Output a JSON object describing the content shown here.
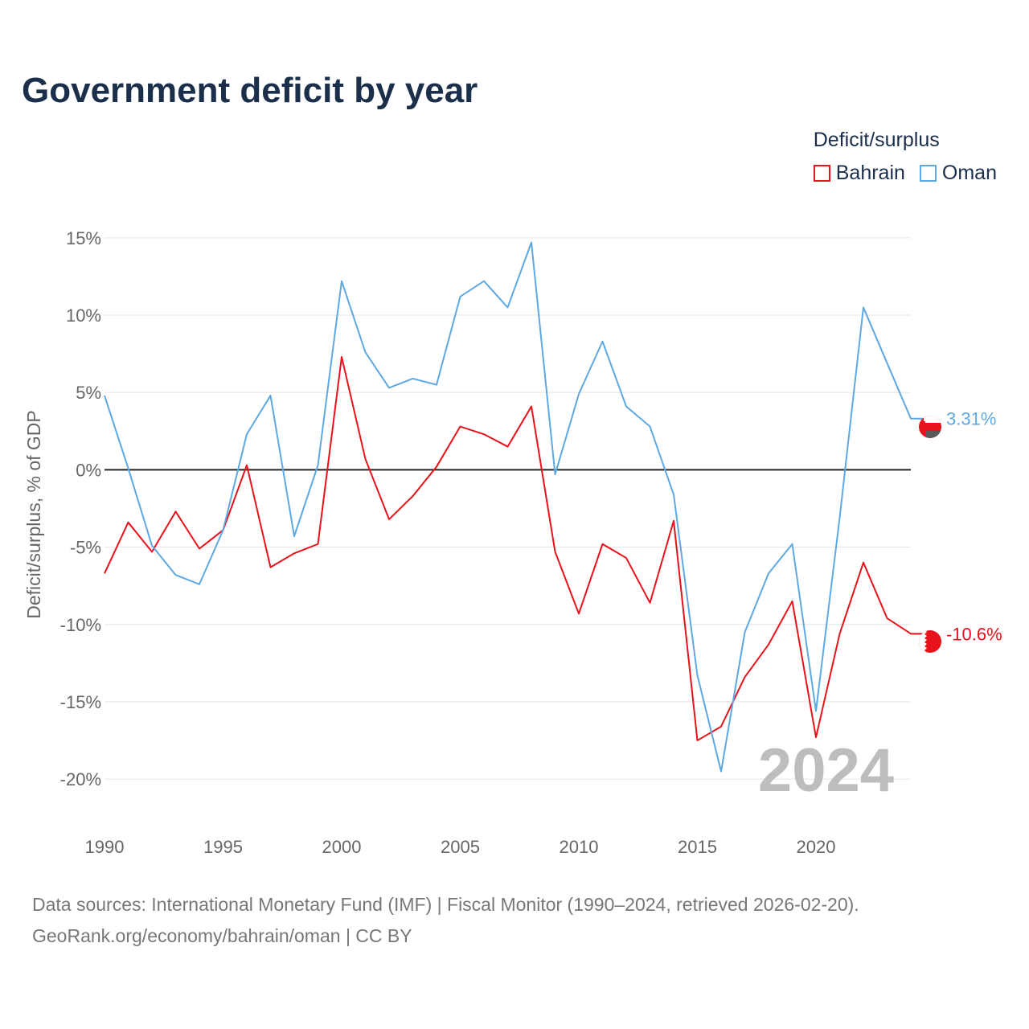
{
  "title": "Government deficit by year",
  "legend": {
    "title": "Deficit/surplus",
    "items": [
      {
        "label": "Bahrain",
        "color": "#e8121b"
      },
      {
        "label": "Oman",
        "color": "#5ea8e2"
      }
    ]
  },
  "chart_data": {
    "type": "line",
    "title": "Government deficit by year",
    "xlabel": "",
    "ylabel": "Deficit/surplus, % of GDP",
    "x": [
      1990,
      1991,
      1992,
      1993,
      1994,
      1995,
      1996,
      1997,
      1998,
      1999,
      2000,
      2001,
      2002,
      2003,
      2004,
      2005,
      2006,
      2007,
      2008,
      2009,
      2010,
      2011,
      2012,
      2013,
      2014,
      2015,
      2016,
      2017,
      2018,
      2019,
      2020,
      2021,
      2022,
      2023,
      2024
    ],
    "xlim": [
      1990,
      2024
    ],
    "ylim": [
      -21.5,
      16.5
    ],
    "xticks": [
      1990,
      1995,
      2000,
      2005,
      2010,
      2015,
      2020
    ],
    "xtick_labels": [
      "1990",
      "1995",
      "2000",
      "2005",
      "2010",
      "2015",
      "2020"
    ],
    "yticks": [
      15,
      10,
      5,
      0,
      -5,
      -10,
      -15,
      -20
    ],
    "ytick_labels": [
      "15%",
      "10%",
      "5%",
      "0%",
      "-5%",
      "-10%",
      "-15%",
      "-20%"
    ],
    "grid": true,
    "zero_line": true,
    "watermark_year": "2024",
    "series": [
      {
        "name": "Bahrain",
        "color": "#e8121b",
        "end_label": "-10.6%",
        "values": [
          -6.7,
          -3.4,
          -5.3,
          -2.7,
          -5.1,
          -3.9,
          0.3,
          -6.3,
          -5.4,
          -4.8,
          7.3,
          0.7,
          -3.2,
          -1.7,
          0.2,
          2.8,
          2.3,
          1.5,
          4.1,
          -5.3,
          -9.3,
          -4.8,
          -5.7,
          -8.6,
          -3.3,
          -17.5,
          -16.6,
          -13.4,
          -11.3,
          -8.5,
          -17.3,
          -10.6,
          -6.0,
          -9.6,
          -10.6
        ]
      },
      {
        "name": "Oman",
        "color": "#5ea8e2",
        "end_label": "3.31%",
        "values": [
          4.8,
          0.1,
          -4.9,
          -6.8,
          -7.4,
          -3.9,
          2.3,
          4.8,
          -4.3,
          0.3,
          12.2,
          7.6,
          5.3,
          5.9,
          5.5,
          11.2,
          12.2,
          10.5,
          14.7,
          -0.3,
          4.9,
          8.3,
          4.1,
          2.8,
          -1.6,
          -13.3,
          -19.5,
          -10.5,
          -6.7,
          -4.8,
          -15.6,
          -3.1,
          10.5,
          6.9,
          3.31
        ]
      }
    ]
  },
  "footer": {
    "sources": "Data sources: International Monetary Fund (IMF) | Fiscal Monitor (1990–2024, retrieved 2026-02-20).",
    "credit": "GeoRank.org/economy/bahrain/oman | CC BY"
  }
}
